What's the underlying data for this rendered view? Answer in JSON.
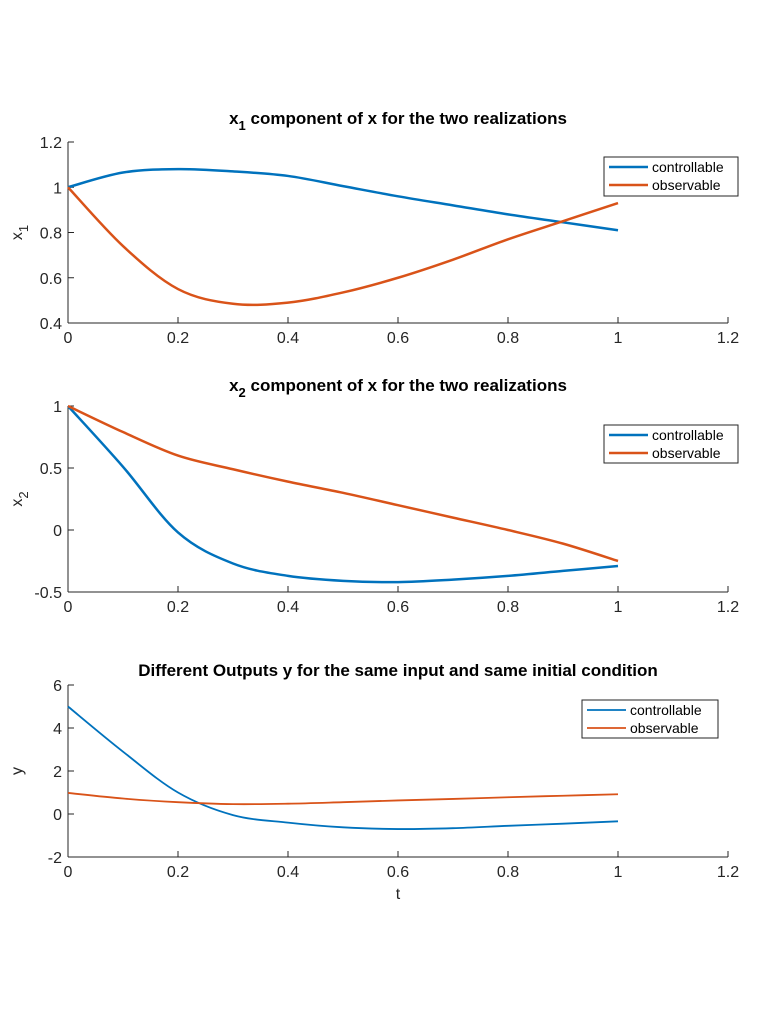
{
  "colors": {
    "controllable": "#0072BD",
    "observable": "#D95319"
  },
  "chart_data": [
    {
      "type": "line",
      "title": "x1 component of x for the two realizations",
      "title_main": "x",
      "title_sub": "1",
      "title_rest": " component of x for the two realizations",
      "xlabel": "",
      "ylabel_main": "x",
      "ylabel_sub": "1",
      "xlim": [
        0,
        1.2
      ],
      "ylim": [
        0.4,
        1.2
      ],
      "xticks": [
        "0",
        "0.2",
        "0.4",
        "0.6",
        "0.8",
        "1",
        "1.2"
      ],
      "yticks": [
        "0.4",
        "0.6",
        "0.8",
        "1",
        "1.2"
      ],
      "grid": false,
      "legend": "top-right",
      "x": [
        0,
        0.1,
        0.2,
        0.3,
        0.4,
        0.5,
        0.6,
        0.7,
        0.8,
        0.9,
        1.0
      ],
      "series": [
        {
          "name": "controllable",
          "values": [
            1.0,
            1.065,
            1.08,
            1.07,
            1.05,
            1.005,
            0.96,
            0.92,
            0.88,
            0.845,
            0.81
          ]
        },
        {
          "name": "observable",
          "values": [
            1.0,
            0.74,
            0.55,
            0.485,
            0.49,
            0.535,
            0.6,
            0.68,
            0.77,
            0.85,
            0.93
          ]
        }
      ]
    },
    {
      "type": "line",
      "title": "x2 component of x for the two realizations",
      "title_main": "x",
      "title_sub": "2",
      "title_rest": " component of x for the two realizations",
      "xlabel": "",
      "ylabel_main": "x",
      "ylabel_sub": "2",
      "xlim": [
        0,
        1.2
      ],
      "ylim": [
        -0.5,
        1
      ],
      "xticks": [
        "0",
        "0.2",
        "0.4",
        "0.6",
        "0.8",
        "1",
        "1.2"
      ],
      "yticks": [
        "-0.5",
        "0",
        "0.5",
        "1"
      ],
      "grid": false,
      "legend": "top-right",
      "x": [
        0,
        0.1,
        0.2,
        0.3,
        0.4,
        0.5,
        0.6,
        0.7,
        0.8,
        0.9,
        1.0
      ],
      "series": [
        {
          "name": "controllable",
          "values": [
            1.0,
            0.51,
            -0.02,
            -0.27,
            -0.37,
            -0.41,
            -0.42,
            -0.4,
            -0.37,
            -0.33,
            -0.29
          ]
        },
        {
          "name": "observable",
          "values": [
            1.0,
            0.79,
            0.6,
            0.49,
            0.39,
            0.3,
            0.2,
            0.1,
            0.0,
            -0.11,
            -0.25
          ]
        }
      ]
    },
    {
      "type": "line",
      "title": "Different Outputs y for the same input and same initial condition",
      "xlabel": "t",
      "ylabel_main": "y",
      "ylabel_sub": "",
      "xlim": [
        0,
        1.2
      ],
      "ylim": [
        -2,
        6
      ],
      "xticks": [
        "0",
        "0.2",
        "0.4",
        "0.6",
        "0.8",
        "1",
        "1.2"
      ],
      "yticks": [
        "-2",
        "0",
        "2",
        "4",
        "6"
      ],
      "grid": false,
      "legend": "top-right",
      "x": [
        0,
        0.1,
        0.2,
        0.3,
        0.4,
        0.5,
        0.6,
        0.7,
        0.8,
        0.9,
        1.0
      ],
      "series": [
        {
          "name": "controllable",
          "values": [
            5.0,
            2.9,
            1.0,
            -0.05,
            -0.4,
            -0.62,
            -0.7,
            -0.66,
            -0.55,
            -0.45,
            -0.34
          ]
        },
        {
          "name": "observable",
          "values": [
            0.98,
            0.72,
            0.55,
            0.46,
            0.48,
            0.55,
            0.63,
            0.7,
            0.78,
            0.85,
            0.92
          ]
        }
      ]
    }
  ]
}
